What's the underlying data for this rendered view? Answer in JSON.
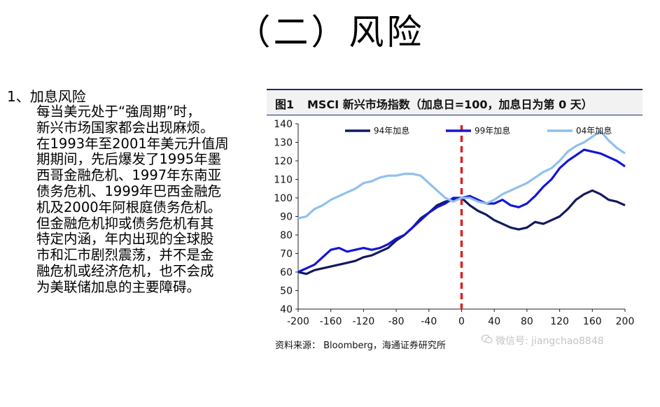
{
  "slide": {
    "title": "（二）风险"
  },
  "text": {
    "heading": "1、加息风险",
    "body": "    每当美元处于“強周期”时，\n新兴市场国家都会出现麻烦。\n在1993年至2001年美元升值周\n期期间，先后爆发了1995年墨\n西哥金融危机、1997年东南亚\n债务危机、1999年巴西金融危\n机及2000年阿根庭债务危机。\n但金融危机抑或债务危机有其\n特定内涵，年内出现的全球股\n市和汇市剧烈震荡，并不是金\n融危机或经济危机，也不会成\n为美联储加息的主要障碍。"
  },
  "chart": {
    "fig_no": "图1",
    "title": "MSCI 新兴市场指数（加息日=100，加息日为第 0 天）",
    "source": "资料来源： Bloomberg，海通证券研究所"
  },
  "watermark": {
    "icon": "wechat-icon",
    "text": "微信号: jiangchao8848"
  },
  "chart_data": {
    "type": "line",
    "title": "MSCI 新兴市场指数（加息日=100，加息日为第 0 天）",
    "xlabel": "",
    "ylabel": "",
    "xlim": [
      -200,
      200
    ],
    "ylim": [
      40,
      140
    ],
    "x_ticks": [
      -200,
      -160,
      -120,
      -80,
      -40,
      0,
      40,
      80,
      120,
      160,
      200
    ],
    "y_ticks": [
      40,
      50,
      60,
      70,
      80,
      90,
      100,
      110,
      120,
      130,
      140
    ],
    "grid": false,
    "legend_position": "top",
    "vertical_marker": {
      "x": 0,
      "color": "#e01f1f",
      "style": "dashed"
    },
    "x": [
      -200,
      -190,
      -180,
      -170,
      -160,
      -150,
      -140,
      -130,
      -120,
      -110,
      -100,
      -90,
      -80,
      -70,
      -60,
      -50,
      -40,
      -30,
      -20,
      -10,
      0,
      10,
      20,
      30,
      40,
      50,
      60,
      70,
      80,
      90,
      100,
      110,
      120,
      130,
      140,
      150,
      160,
      170,
      180,
      190,
      200
    ],
    "series": [
      {
        "name": "94年加息",
        "color": "#121a5e",
        "values": [
          60,
          59,
          61,
          62,
          63,
          64,
          65,
          66,
          68,
          69,
          71,
          73,
          77,
          80,
          84,
          89,
          92,
          96,
          98,
          99,
          100,
          96,
          93,
          91,
          88,
          86,
          84,
          83,
          84,
          87,
          86,
          88,
          90,
          94,
          99,
          102,
          104,
          102,
          99,
          98,
          96
        ]
      },
      {
        "name": "99年加息",
        "color": "#1515d6",
        "values": [
          60,
          62,
          64,
          68,
          72,
          73,
          71,
          72,
          73,
          72,
          73,
          75,
          78,
          80,
          84,
          88,
          92,
          95,
          97,
          100,
          100,
          101,
          99,
          97,
          97,
          99,
          96,
          95,
          97,
          101,
          106,
          110,
          116,
          120,
          123,
          126,
          125,
          124,
          122,
          120,
          117
        ]
      },
      {
        "name": "04年加息",
        "color": "#8fc0ec",
        "values": [
          89,
          90,
          94,
          96,
          99,
          101,
          103,
          105,
          108,
          109,
          111,
          112,
          112,
          113,
          113,
          112,
          108,
          104,
          100,
          98,
          100,
          100,
          98,
          97,
          99,
          102,
          104,
          106,
          108,
          111,
          114,
          116,
          120,
          125,
          128,
          130,
          133,
          136,
          131,
          127,
          124
        ]
      }
    ]
  }
}
